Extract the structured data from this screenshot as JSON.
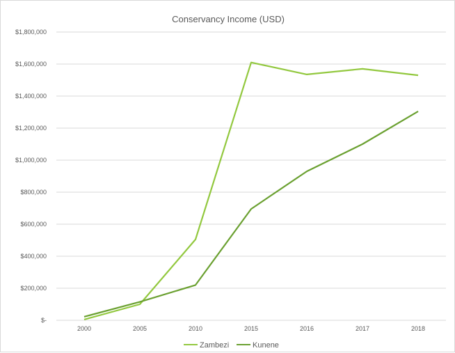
{
  "chart_data": {
    "type": "line",
    "title": "Conservancy Income (USD)",
    "xlabel": "",
    "ylabel": "",
    "categories": [
      "2000",
      "2005",
      "2010",
      "2015",
      "2016",
      "2017",
      "2018"
    ],
    "y_ticks": [
      "$-",
      "$200,000",
      "$400,000",
      "$600,000",
      "$800,000",
      "$1,000,000",
      "$1,200,000",
      "$1,400,000",
      "$1,600,000",
      "$1,800,000"
    ],
    "ylim": [
      0,
      1800000
    ],
    "grid": true,
    "legend_position": "bottom",
    "series": [
      {
        "name": "Zambezi",
        "color": "#92c83e",
        "values": [
          5000,
          100000,
          505000,
          1610000,
          1535000,
          1570000,
          1530000
        ]
      },
      {
        "name": "Kunene",
        "color": "#6aa030",
        "values": [
          22000,
          115000,
          220000,
          695000,
          930000,
          1100000,
          1305000
        ]
      }
    ]
  }
}
